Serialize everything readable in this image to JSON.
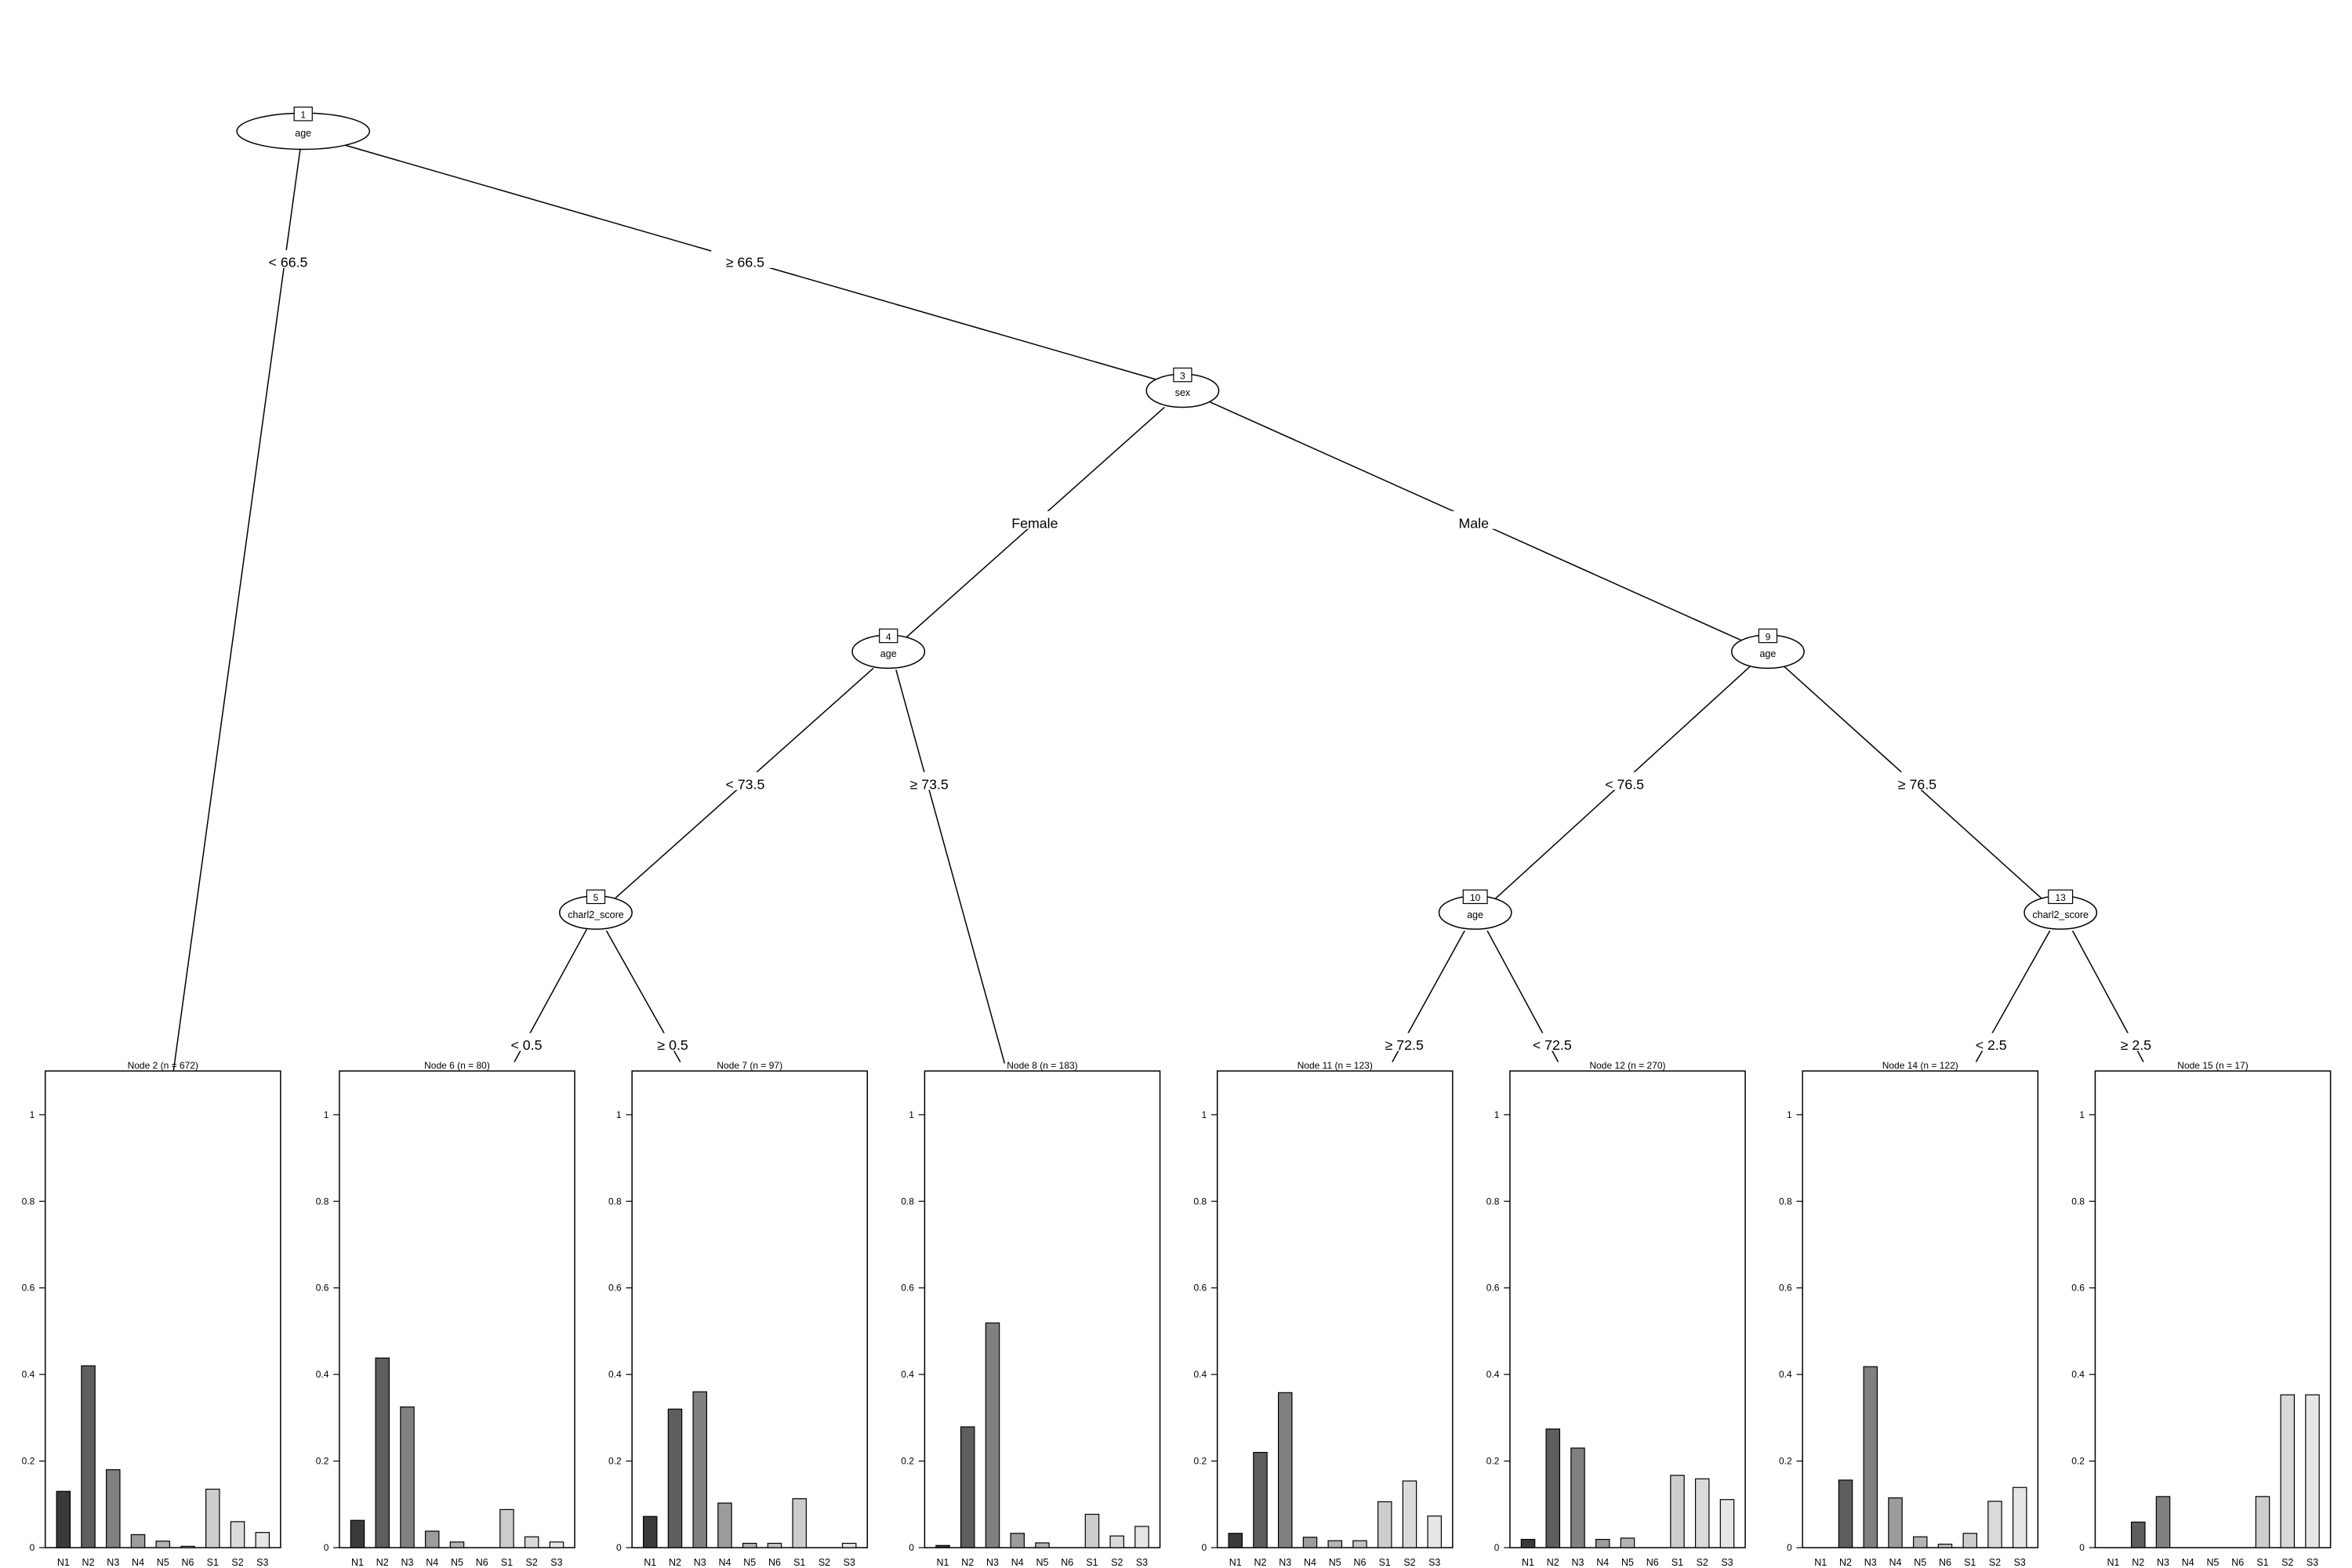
{
  "tree": {
    "categories": [
      "N1",
      "N2",
      "N3",
      "N4",
      "N5",
      "N6",
      "S1",
      "S2",
      "S3"
    ],
    "category_colors": [
      "#3a3a3a",
      "#5e5e5e",
      "#808080",
      "#9c9c9c",
      "#b4b4b4",
      "#c4c4c4",
      "#cdcdcd",
      "#dadada",
      "#e6e6e6"
    ],
    "inner_nodes": [
      {
        "id": "1",
        "variable": "age"
      },
      {
        "id": "3",
        "variable": "sex"
      },
      {
        "id": "4",
        "variable": "age"
      },
      {
        "id": "9",
        "variable": "age"
      },
      {
        "id": "5",
        "variable": "charl2_score"
      },
      {
        "id": "10",
        "variable": "age"
      },
      {
        "id": "13",
        "variable": "charl2_score"
      }
    ],
    "edges": [
      {
        "from": "1",
        "to": "2",
        "label": "< 66.5"
      },
      {
        "from": "1",
        "to": "3",
        "label": "≥ 66.5"
      },
      {
        "from": "3",
        "to": "4",
        "label": "Female"
      },
      {
        "from": "3",
        "to": "9",
        "label": "Male"
      },
      {
        "from": "4",
        "to": "5",
        "label": "< 73.5"
      },
      {
        "from": "4",
        "to": "8",
        "label": "≥ 73.5"
      },
      {
        "from": "5",
        "to": "6",
        "label": "< 0.5"
      },
      {
        "from": "5",
        "to": "7",
        "label": "≥ 0.5"
      },
      {
        "from": "9",
        "to": "10",
        "label": "< 76.5"
      },
      {
        "from": "9",
        "to": "13",
        "label": "≥ 76.5"
      },
      {
        "from": "10",
        "to": "11",
        "label": "≥ 72.5"
      },
      {
        "from": "10",
        "to": "12",
        "label": "< 72.5"
      },
      {
        "from": "13",
        "to": "14",
        "label": "< 2.5"
      },
      {
        "from": "13",
        "to": "15",
        "label": "≥ 2.5"
      }
    ],
    "yticks": [
      "0",
      "0.2",
      "0.4",
      "0.6",
      "0.8",
      "1"
    ]
  },
  "chart_data": {
    "type": "bar",
    "categories": [
      "N1",
      "N2",
      "N3",
      "N4",
      "N5",
      "N6",
      "S1",
      "S2",
      "S3"
    ],
    "ylim": [
      0,
      1
    ],
    "yticks": [
      0,
      0.2,
      0.4,
      0.6,
      0.8,
      1
    ],
    "panels": [
      {
        "title": "Node 2 (n = 672)",
        "values": [
          0.13,
          0.42,
          0.18,
          0.03,
          0.015,
          0.003,
          0.135,
          0.06,
          0.035
        ]
      },
      {
        "title": "Node 6 (n = 80)",
        "values": [
          0.063,
          0.438,
          0.325,
          0.038,
          0.013,
          0.0,
          0.088,
          0.025,
          0.013
        ]
      },
      {
        "title": "Node 7 (n = 97)",
        "values": [
          0.072,
          0.32,
          0.36,
          0.103,
          0.01,
          0.01,
          0.113,
          0.0,
          0.01
        ]
      },
      {
        "title": "Node 8 (n = 183)",
        "values": [
          0.005,
          0.279,
          0.519,
          0.033,
          0.011,
          0.0,
          0.077,
          0.027,
          0.049
        ]
      },
      {
        "title": "Node 11 (n = 123)",
        "values": [
          0.033,
          0.22,
          0.358,
          0.024,
          0.016,
          0.016,
          0.106,
          0.154,
          0.073
        ]
      },
      {
        "title": "Node 12 (n = 270)",
        "values": [
          0.019,
          0.274,
          0.23,
          0.019,
          0.022,
          0.0,
          0.167,
          0.159,
          0.111
        ]
      },
      {
        "title": "Node 14 (n = 122)",
        "values": [
          0.0,
          0.156,
          0.418,
          0.115,
          0.025,
          0.008,
          0.033,
          0.107,
          0.139
        ]
      },
      {
        "title": "Node 15 (n = 17)",
        "values": [
          0.0,
          0.059,
          0.118,
          0.0,
          0.0,
          0.0,
          0.118,
          0.353,
          0.353
        ]
      }
    ]
  }
}
